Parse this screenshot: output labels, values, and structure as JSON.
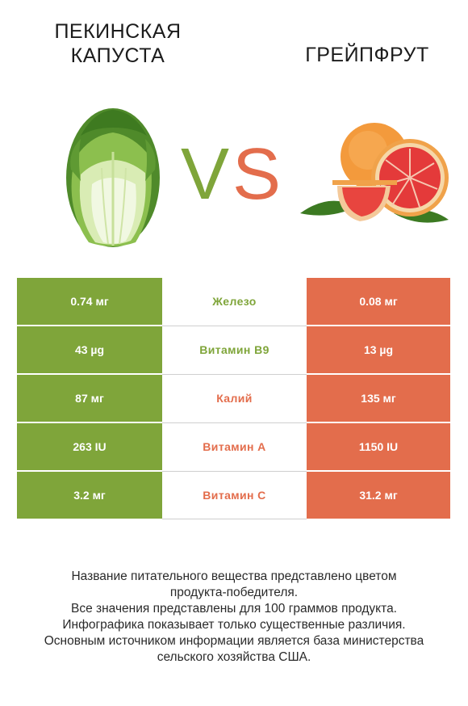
{
  "header": {
    "left_title": "Пекинская\nкапуста",
    "right_title": "грейпфрут",
    "vs_label": "VS"
  },
  "images": {
    "left": "chinese-cabbage",
    "right": "grapefruit"
  },
  "colors": {
    "left_accent": "#7fa53a",
    "right_accent": "#e36d4c"
  },
  "rows": [
    {
      "left": "0.74 мг",
      "nutrient": "Железо",
      "right": "0.08 мг",
      "winner": "left"
    },
    {
      "left": "43 µg",
      "nutrient": "Витамин B9",
      "right": "13 µg",
      "winner": "left"
    },
    {
      "left": "87 мг",
      "nutrient": "Калий",
      "right": "135 мг",
      "winner": "right"
    },
    {
      "left": "263 IU",
      "nutrient": "Витамин A",
      "right": "1150 IU",
      "winner": "right"
    },
    {
      "left": "3.2 мг",
      "nutrient": "Витамин C",
      "right": "31.2 мг",
      "winner": "right"
    }
  ],
  "footer": {
    "line1": "Название питательного вещества представлено цветом",
    "line2": "продукта-победителя.",
    "line3a": "Все значения представлены для ",
    "line3b": "100",
    "line3c": " граммов продукта.",
    "line4": "Инфографика показывает только существенные различия.",
    "line5": "Основным источником информации является база министерства",
    "line6": "сельского хозяйства США."
  }
}
